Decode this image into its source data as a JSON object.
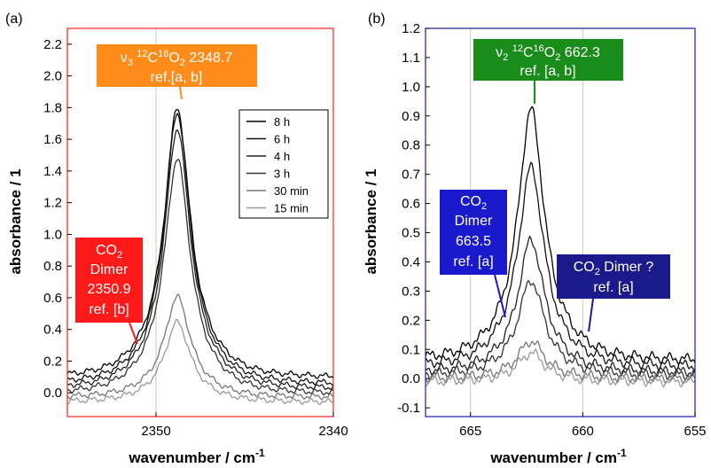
{
  "chart_data": [
    {
      "panel_label": "(a)",
      "type": "line",
      "xlabel": "wavenumber / cm",
      "xlabel_sup": "-1",
      "ylabel": "absorbance / 1",
      "xlim": [
        2355,
        2340
      ],
      "ylim": [
        -0.15,
        2.3
      ],
      "x_ticks": [
        2350,
        2340
      ],
      "y_ticks": [
        "0.0",
        "0.2",
        "0.4",
        "0.6",
        "0.8",
        "1.0",
        "1.2",
        "1.4",
        "1.6",
        "1.8",
        "2.0",
        "2.2"
      ],
      "frame_color": "#ff2020",
      "gridlines_x": [
        2350
      ],
      "peak_x": 2348.8,
      "legend": [
        "8 h",
        "6 h",
        "4 h",
        "3 h",
        "30 min",
        "15 min"
      ],
      "series": [
        {
          "name": "8 h",
          "baseline": 0.09,
          "peak": 1.81,
          "color": "#000000"
        },
        {
          "name": "6 h",
          "baseline": 0.05,
          "peak": 1.78,
          "color": "#111111"
        },
        {
          "name": "4 h",
          "baseline": 0.02,
          "peak": 1.68,
          "color": "#222222"
        },
        {
          "name": "3 h",
          "baseline": -0.01,
          "peak": 1.49,
          "color": "#333333"
        },
        {
          "name": "30 min",
          "baseline": -0.03,
          "peak": 0.61,
          "color": "#777777"
        },
        {
          "name": "15 min",
          "baseline": -0.06,
          "peak": 0.45,
          "color": "#999999"
        }
      ],
      "annotations": [
        {
          "lines": [
            "ν3 12C16O2  2348.7",
            "ref.[a, b]"
          ],
          "color": "#ff8c1a"
        },
        {
          "lines": [
            "CO2",
            "Dimer",
            "2350.9",
            "ref. [b]"
          ],
          "color": "#ff1a1a"
        }
      ]
    },
    {
      "panel_label": "(b)",
      "type": "line",
      "xlabel": "wavenumber / cm",
      "xlabel_sup": "-1",
      "ylabel": "absorbance / 1",
      "xlim": [
        667,
        655
      ],
      "ylim": [
        -0.13,
        1.2
      ],
      "x_ticks": [
        665,
        660,
        655
      ],
      "y_ticks": [
        "-0.1",
        "0.0",
        "0.1",
        "0.2",
        "0.3",
        "0.4",
        "0.5",
        "0.6",
        "0.7",
        "0.8",
        "0.9",
        "1.0",
        "1.1",
        "1.2"
      ],
      "frame_color": "#1a1aaa",
      "gridlines_x": [
        665,
        660
      ],
      "peak_x": 662.3,
      "series": [
        {
          "name": "8 h",
          "baseline": 0.06,
          "peak": 0.93,
          "color": "#000000"
        },
        {
          "name": "6 h",
          "baseline": 0.04,
          "peak": 0.73,
          "color": "#111111"
        },
        {
          "name": "4 h",
          "baseline": 0.02,
          "peak": 0.48,
          "color": "#222222"
        },
        {
          "name": "3 h",
          "baseline": 0.01,
          "peak": 0.34,
          "color": "#333333"
        },
        {
          "name": "30 min",
          "baseline": 0.0,
          "peak": 0.13,
          "color": "#777777"
        },
        {
          "name": "15 min",
          "baseline": -0.01,
          "peak": 0.09,
          "color": "#999999"
        }
      ],
      "annotations": [
        {
          "lines": [
            "ν2 12C16O2 662.3",
            "ref. [a, b]"
          ],
          "color": "#1a8c1a"
        },
        {
          "lines": [
            "CO2",
            "Dimer",
            "663.5",
            "ref. [a]"
          ],
          "color": "#1a1acc"
        },
        {
          "lines": [
            "CO2 Dimer ?",
            "ref. [a]"
          ],
          "color": "#1a1a8c"
        }
      ]
    }
  ]
}
